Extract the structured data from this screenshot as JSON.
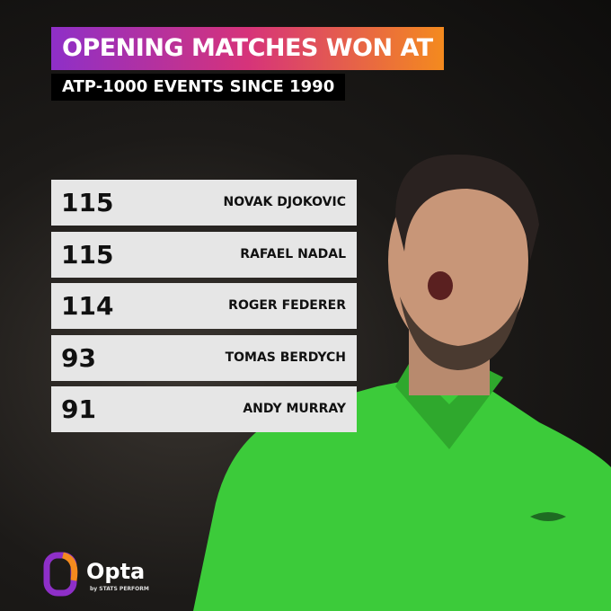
{
  "header": {
    "title_line1": "OPENING MATCHES WON AT",
    "title_line2": "ATP-1000 EVENTS SINCE 1990"
  },
  "table": {
    "rows": [
      [
        115,
        "NOVAK DJOKOVIC"
      ],
      [
        115,
        "RAFAEL NADAL"
      ],
      [
        114,
        "ROGER FEDERER"
      ],
      [
        93,
        "TOMAS BERDYCH"
      ],
      [
        91,
        "ANDY MURRAY"
      ]
    ]
  },
  "logo": {
    "name": "Opta",
    "tagline": "by STATS PERFORM"
  }
}
